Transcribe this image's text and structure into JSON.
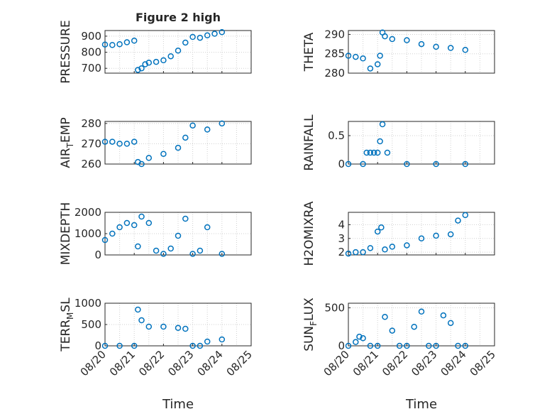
{
  "figure": {
    "title": "Figure 2 high"
  },
  "chart_data": [
    {
      "type": "scatter",
      "ylabel": "PRESSURE",
      "yticks": [
        700,
        800,
        900
      ],
      "ylim": [
        670,
        935
      ],
      "x": [
        "08/20",
        "08/20 06h",
        "08/20 12h",
        "08/20 18h",
        "08/21",
        "08/21 03h",
        "08/21 06h",
        "08/21 09h",
        "08/21 12h",
        "08/21 18h",
        "08/22",
        "08/22 06h",
        "08/22 12h",
        "08/22 18h",
        "08/23",
        "08/23 06h",
        "08/23 12h",
        "08/23 18h",
        "08/24"
      ],
      "values": [
        848,
        845,
        850,
        862,
        872,
        690,
        700,
        725,
        735,
        740,
        750,
        775,
        810,
        860,
        895,
        890,
        905,
        915,
        925
      ]
    },
    {
      "type": "scatter",
      "ylabel": "THETA",
      "yticks": [
        280,
        285,
        290
      ],
      "ylim": [
        280,
        291
      ],
      "x": [
        "08/20",
        "08/20 06h",
        "08/20 12h",
        "08/20 18h",
        "08/21",
        "08/21 02h",
        "08/21 04h",
        "08/21 06h",
        "08/21 12h",
        "08/22",
        "08/22 12h",
        "08/23",
        "08/23 12h",
        "08/24"
      ],
      "values": [
        284.5,
        284.2,
        283.8,
        281.2,
        282.3,
        284.5,
        290.5,
        289.5,
        288.8,
        288.5,
        287.5,
        286.8,
        286.5,
        286
      ]
    },
    {
      "type": "scatter",
      "ylabel": "AIR_TEMP",
      "yticks": [
        260,
        270,
        280
      ],
      "ylim": [
        260,
        281
      ],
      "x": [
        "08/20",
        "08/20 06h",
        "08/20 12h",
        "08/20 18h",
        "08/21",
        "08/21 03h",
        "08/21 06h",
        "08/21 12h",
        "08/22",
        "08/22 12h",
        "08/22 18h",
        "08/23",
        "08/23 12h",
        "08/24"
      ],
      "values": [
        271,
        271,
        270,
        270,
        271,
        261,
        260,
        263,
        265,
        268,
        273,
        279,
        277,
        280
      ]
    },
    {
      "type": "scatter",
      "ylabel": "RAINFALL",
      "yticks": [
        0,
        0.5
      ],
      "ylim": [
        0,
        0.75
      ],
      "x": [
        "08/20",
        "08/20 12h",
        "08/20 15h",
        "08/20 18h",
        "08/20 21h",
        "08/21",
        "08/21 02h",
        "08/21 04h",
        "08/21 08h",
        "08/22",
        "08/23",
        "08/24"
      ],
      "values": [
        0,
        0,
        0.2,
        0.2,
        0.2,
        0.2,
        0.4,
        0.7,
        0.2,
        0,
        0,
        0
      ]
    },
    {
      "type": "scatter",
      "ylabel": "MIXDEPTH",
      "yticks": [
        0,
        1000,
        2000
      ],
      "ylim": [
        0,
        2000
      ],
      "x": [
        "08/20",
        "08/20 06h",
        "08/20 12h",
        "08/20 18h",
        "08/21",
        "08/21 03h",
        "08/21 06h",
        "08/21 12h",
        "08/21 18h",
        "08/22",
        "08/22 06h",
        "08/22 12h",
        "08/22 18h",
        "08/23",
        "08/23 06h",
        "08/23 12h",
        "08/24"
      ],
      "values": [
        700,
        1000,
        1300,
        1500,
        1400,
        400,
        1800,
        1500,
        200,
        50,
        300,
        900,
        1700,
        50,
        200,
        1300,
        50
      ]
    },
    {
      "type": "scatter",
      "ylabel": "H2OMIXRA",
      "yticks": [
        2,
        3,
        4
      ],
      "ylim": [
        1.8,
        4.9
      ],
      "x": [
        "08/20",
        "08/20 06h",
        "08/20 12h",
        "08/20 18h",
        "08/21",
        "08/21 03h",
        "08/21 06h",
        "08/21 12h",
        "08/22",
        "08/22 12h",
        "08/23",
        "08/23 12h",
        "08/23 18h",
        "08/24"
      ],
      "values": [
        1.9,
        2,
        2,
        2.3,
        3.5,
        3.8,
        2.2,
        2.4,
        2.5,
        3,
        3.2,
        3.3,
        4.3,
        4.7
      ]
    },
    {
      "type": "scatter",
      "ylabel": "TERR_MSL",
      "yticks": [
        0,
        500,
        1000
      ],
      "ylim": [
        0,
        1000
      ],
      "x": [
        "08/20",
        "08/20 12h",
        "08/21",
        "08/21 03h",
        "08/21 06h",
        "08/21 12h",
        "08/22",
        "08/22 12h",
        "08/22 18h",
        "08/23",
        "08/23 06h",
        "08/23 12h",
        "08/24"
      ],
      "values": [
        0,
        0,
        0,
        850,
        600,
        450,
        450,
        420,
        400,
        0,
        0,
        100,
        150
      ]
    },
    {
      "type": "scatter",
      "ylabel": "SUN_FLUX",
      "yticks": [
        0,
        500
      ],
      "ylim": [
        0,
        560
      ],
      "x": [
        "08/20",
        "08/20 06h",
        "08/20 09h",
        "08/20 12h",
        "08/20 18h",
        "08/21",
        "08/21 06h",
        "08/21 12h",
        "08/21 18h",
        "08/22",
        "08/22 06h",
        "08/22 12h",
        "08/22 18h",
        "08/23",
        "08/23 06h",
        "08/23 12h",
        "08/23 18h",
        "08/24"
      ],
      "values": [
        0,
        50,
        120,
        100,
        0,
        0,
        380,
        200,
        0,
        0,
        250,
        450,
        0,
        0,
        400,
        300,
        0,
        0
      ]
    }
  ],
  "xaxis": {
    "ticks": [
      "08/20",
      "08/21",
      "08/22",
      "08/23",
      "08/24",
      "08/25"
    ],
    "label": "Time"
  },
  "colors": {
    "marker": "#0072BD",
    "axis": "#262626",
    "grid": "#d0d0d0"
  }
}
